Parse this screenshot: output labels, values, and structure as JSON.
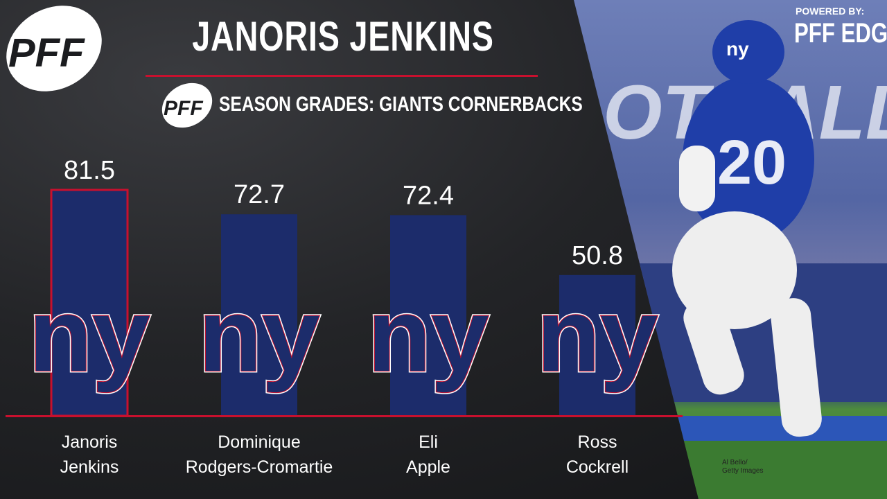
{
  "header": {
    "title": "JANORIS JENKINS",
    "subtitle": "SEASON GRADES: GIANTS CORNERBACKS",
    "logo_text": "PFF",
    "powered_by": "POWERED BY:",
    "powered_brand": "PFF EDGE"
  },
  "photo": {
    "credit_line1": "Al Bello/",
    "credit_line2": "Getty Images",
    "jersey_number": "20",
    "helmet_text": "ny"
  },
  "team_logo_text": "ny",
  "colors": {
    "bar": "#1c2c6b",
    "highlight_border": "#c8102e",
    "accent": "#c8102e",
    "text": "#ffffff"
  },
  "chart_data": {
    "type": "bar",
    "title": "SEASON GRADES: GIANTS CORNERBACKS",
    "categories": [
      [
        "Janoris",
        "Jenkins"
      ],
      [
        "Dominique",
        "Rodgers-Cromartie"
      ],
      [
        "Eli",
        "Apple"
      ],
      [
        "Ross",
        "Cockrell"
      ]
    ],
    "values": [
      81.5,
      72.7,
      72.4,
      50.8
    ],
    "highlight_index": 0,
    "ylim": [
      0,
      100
    ],
    "grid": false,
    "legend": "none"
  }
}
